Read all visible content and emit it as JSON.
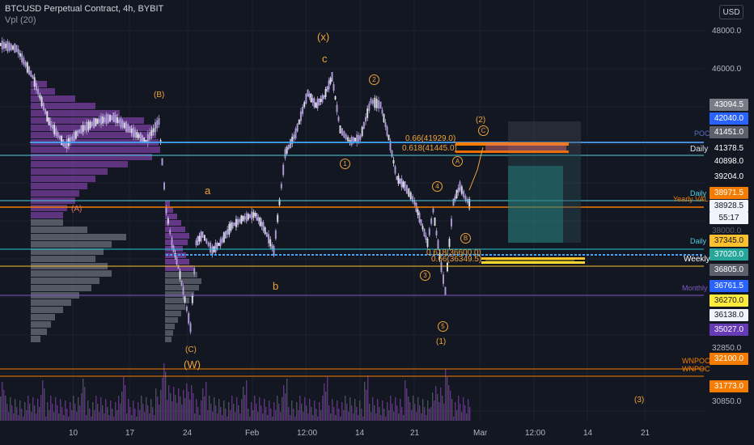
{
  "header": {
    "title": "BTCUSD Perpetual Contract, 4h, BYBIT",
    "indicator": "Vpl (20)"
  },
  "currency_button": "USD",
  "price_axis": {
    "ticks": [
      "48000.0",
      "46000.0",
      "32850.0",
      "30850.0"
    ],
    "dim_ticks": [
      "38000.0"
    ]
  },
  "price_labels": [
    {
      "text": "43094.5",
      "color": "#787b86"
    },
    {
      "text": "42040.0",
      "color": "#2962ff"
    },
    {
      "text": "41451.0",
      "color": "#5d606b"
    },
    {
      "text": "41378.5",
      "color": "#131722"
    },
    {
      "text": "40898.0",
      "color": "#131722"
    },
    {
      "text": "39204.0",
      "color": "#131722"
    },
    {
      "text": "38971.5",
      "color": "#f57c00"
    },
    {
      "text": "38928.5",
      "color": "#f0f3fa"
    },
    {
      "text": "55:17",
      "color": "#f0f3fa"
    },
    {
      "text": "37345.0",
      "color": "#fbc02d"
    },
    {
      "text": "37020.0",
      "color": "#26a69a"
    },
    {
      "text": "36805.0",
      "color": "#5d606b"
    },
    {
      "text": "36761.5",
      "color": "#2962ff"
    },
    {
      "text": "36270.0",
      "color": "#ffeb3b"
    },
    {
      "text": "36138.0",
      "color": "#f0f3fa"
    },
    {
      "text": "35027.0",
      "color": "#673ab7"
    },
    {
      "text": "32100.0",
      "color": "#f57c00"
    },
    {
      "text": "31773.0",
      "color": "#f57c00"
    }
  ],
  "time_axis": [
    "10",
    "17",
    "24",
    "Feb",
    "12:00",
    "14",
    "21",
    "Mar",
    "12:00",
    "14",
    "21"
  ],
  "level_labels": {
    "poc": "POC",
    "daily_1": "Daily",
    "daily_2": "Daily",
    "yearly_val": "Yearly VAL",
    "daily_3": "Daily",
    "weekly": "Weekly",
    "monthly": "Monthly",
    "wnpoc_1": "WNPOC",
    "wnpoc_2": "WNPOC"
  },
  "fib_labels": {
    "f066_top": "0.66(41929.0)",
    "f0618_top": "0.618(41445.0)",
    "f0618_bot": "0.618(36600.0)",
    "f066_bot": "0.66(36349.5)"
  },
  "wave_labels": {
    "x": "(x)",
    "c_top": "c",
    "B": "(B)",
    "A": "(A)",
    "a": "a",
    "b": "b",
    "C_paren": "(C)",
    "W": "(W)",
    "w1": "1",
    "w2": "2",
    "w3": "3",
    "w4": "4",
    "w5": "5",
    "wA": "A",
    "wB": "B",
    "wC": "C",
    "two_paren": "(2)",
    "one_paren": "(1)",
    "three_paren": "(3)"
  },
  "colors": {
    "background": "#131722",
    "cyan": "#4dd0e1",
    "orange": "#f0a33a",
    "purple": "#9c27b0",
    "teal": "#00bcd4",
    "yellow": "#f9d71c"
  }
}
